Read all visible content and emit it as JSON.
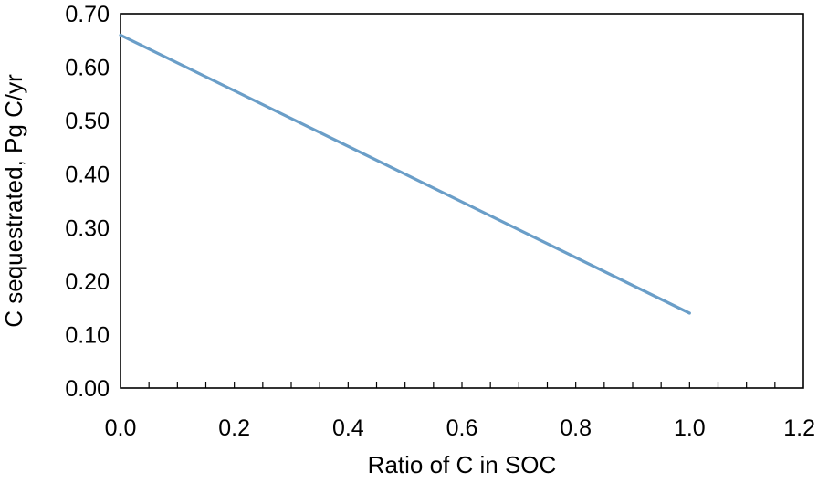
{
  "chart_data": {
    "type": "line",
    "title": "",
    "xlabel": "Ratio of C in SOC",
    "ylabel": "C sequestrated, Pg C/yr",
    "xlim": [
      0.0,
      1.2
    ],
    "ylim": [
      0.0,
      0.7
    ],
    "x_ticks": [
      "0.0",
      "0.2",
      "0.4",
      "0.6",
      "0.8",
      "1.0",
      "1.2"
    ],
    "y_ticks": [
      "0.00",
      "0.10",
      "0.20",
      "0.30",
      "0.40",
      "0.50",
      "0.60",
      "0.70"
    ],
    "x_tick_values": [
      0.0,
      0.2,
      0.4,
      0.6,
      0.8,
      1.0,
      1.2
    ],
    "y_tick_values": [
      0.0,
      0.1,
      0.2,
      0.3,
      0.4,
      0.5,
      0.6,
      0.7
    ],
    "grid": false,
    "legend": "none",
    "series": [
      {
        "x": [
          0.0,
          1.0
        ],
        "y": [
          0.66,
          0.14
        ],
        "color": "#6a9ec8"
      }
    ]
  }
}
